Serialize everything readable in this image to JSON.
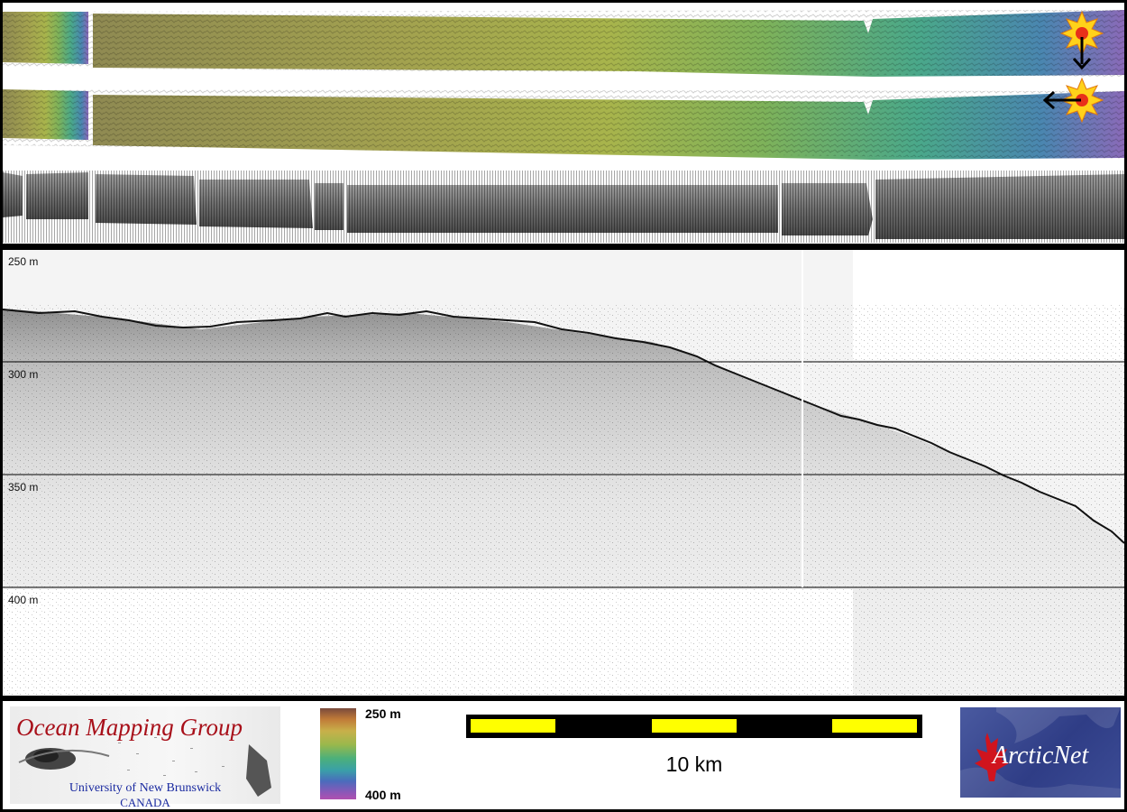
{
  "profile": {
    "depth_labels": [
      "250 m",
      "300 m",
      "350 m",
      "400 m"
    ]
  },
  "legend": {
    "logo_left": {
      "title": "Ocean Mapping Group",
      "subtitle": "University of New Brunswick",
      "country": "CANADA"
    },
    "colorbar": {
      "top_label": "250 m",
      "bottom_label": "400 m"
    },
    "scale_bar": {
      "label": "10 km"
    },
    "logo_right": {
      "text": "ArcticNet"
    }
  },
  "colors": {
    "frame": "#000000",
    "scale_yellow": "#ffff00",
    "omg_red": "#a8101a",
    "omg_blue": "#1a2aa0"
  },
  "icons": [
    "sun-marker-icon",
    "arrow-down-icon",
    "arrow-left-icon",
    "maple-leaf-icon"
  ]
}
